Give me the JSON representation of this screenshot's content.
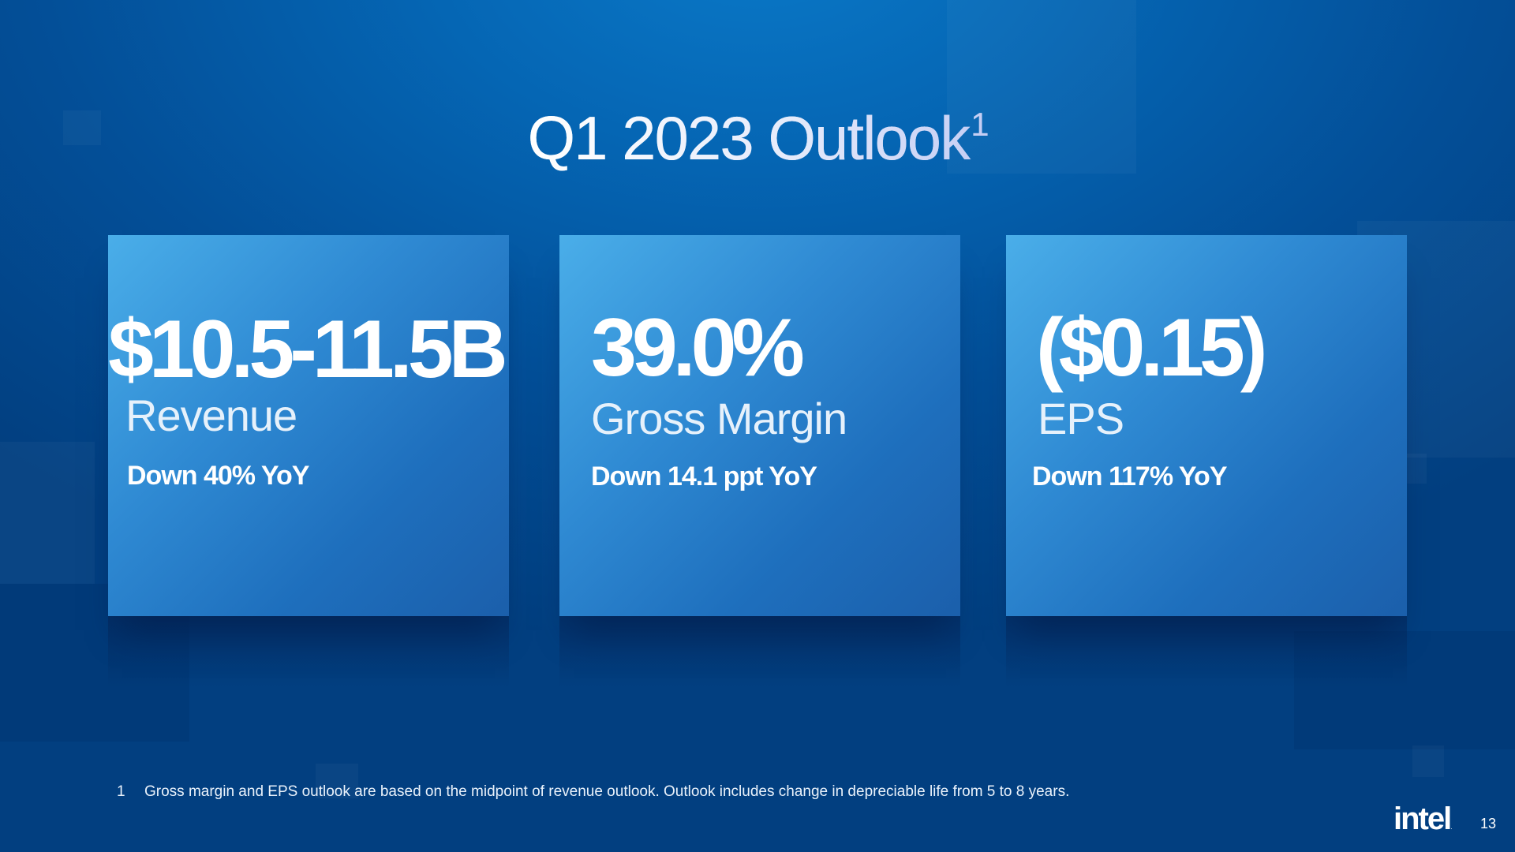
{
  "slide": {
    "title": "Q1 2023 Outlook",
    "title_footnote_marker": "1"
  },
  "cards": [
    {
      "value": "$10.5-11.5B",
      "label": "Revenue",
      "change": "Down 40% YoY"
    },
    {
      "value": "39.0%",
      "label": "Gross Margin",
      "change": "Down 14.1 ppt YoY"
    },
    {
      "value": "($0.15)",
      "label": "EPS",
      "change": "Down 117% YoY"
    }
  ],
  "footnote": {
    "number": "1",
    "text": "Gross margin and EPS outlook are based on the midpoint of revenue outlook. Outlook includes change in depreciable life from 5 to 8 years."
  },
  "branding": {
    "logo_text": "intel",
    "logo_mark": "."
  },
  "page_number": "13",
  "colors": {
    "background": "#034f98",
    "card_light": "#4aaee9",
    "card_dark": "#1b5fab",
    "text": "#ffffff"
  }
}
